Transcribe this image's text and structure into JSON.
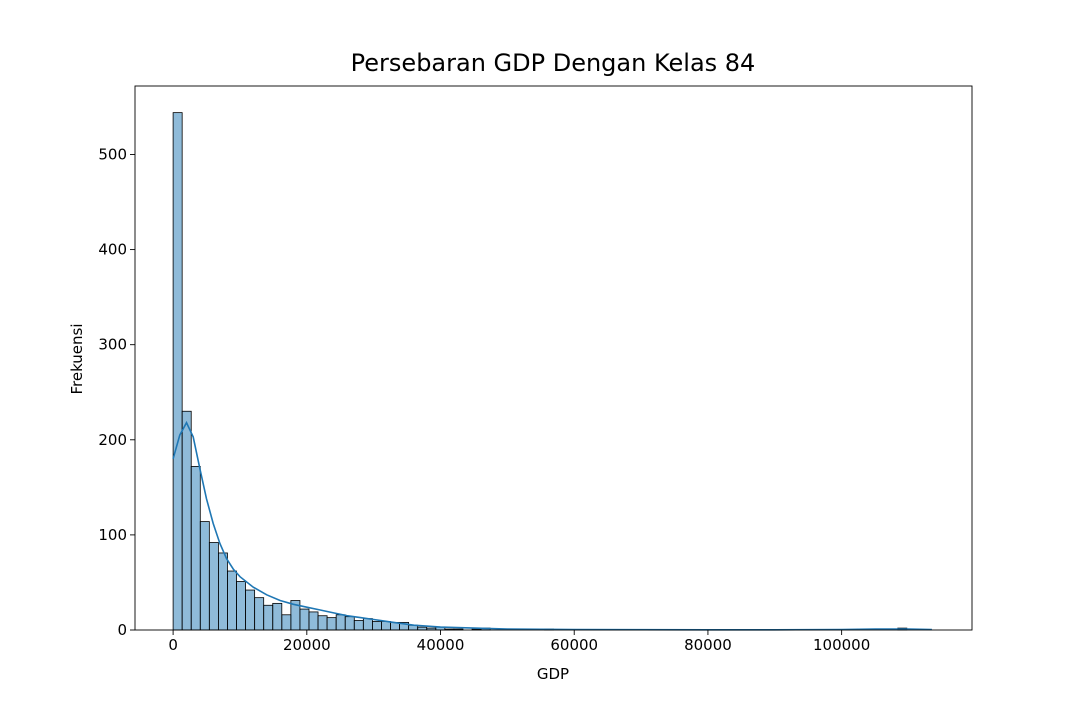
{
  "chart_data": {
    "type": "bar",
    "title": "Persebaran GDP Dengan Kelas 84",
    "xlabel": "GDP",
    "ylabel": "Frekuensi",
    "xlim": [
      -5700,
      119500
    ],
    "ylim": [
      0,
      572
    ],
    "xticks": [
      0,
      20000,
      40000,
      60000,
      80000,
      100000
    ],
    "xtick_labels": [
      "0",
      "20000",
      "40000",
      "60000",
      "80000",
      "100000"
    ],
    "yticks": [
      0,
      100,
      200,
      300,
      400,
      500
    ],
    "ytick_labels": [
      "0",
      "100",
      "200",
      "300",
      "400",
      "500"
    ],
    "bins": {
      "start": 0,
      "width": 1355,
      "count": 84
    },
    "values": [
      544,
      230,
      172,
      114,
      92,
      81,
      62,
      51,
      42,
      34,
      26,
      28,
      16,
      31,
      22,
      19,
      15,
      13,
      16,
      14,
      10,
      12,
      9,
      9,
      8,
      8,
      5,
      3,
      2,
      3,
      1,
      1,
      0,
      1,
      2,
      0,
      0,
      0,
      0,
      0,
      0,
      1,
      0,
      0,
      0,
      0,
      0,
      0,
      0,
      0,
      0,
      0,
      0,
      0,
      0,
      0,
      0,
      0,
      0,
      0,
      0,
      0,
      0,
      0,
      0,
      0,
      0,
      0,
      0,
      0,
      0,
      0,
      0,
      0,
      0,
      0,
      0,
      0,
      0,
      0,
      2,
      0,
      0,
      0
    ],
    "kde": {
      "x": [
        0,
        1000,
        2000,
        3000,
        4000,
        5000,
        6000,
        7000,
        8000,
        9000,
        10000,
        12000,
        14000,
        16000,
        18000,
        20000,
        22000,
        24000,
        26000,
        28000,
        30000,
        33000,
        36000,
        40000,
        45000,
        50000,
        60000,
        70000,
        80000,
        90000,
        100000,
        105000,
        110000,
        113500
      ],
      "y": [
        180,
        205,
        218,
        203,
        170,
        138,
        112,
        91,
        75,
        64,
        56,
        45,
        37,
        31,
        27,
        24,
        21,
        18,
        15,
        13,
        11,
        8,
        5,
        3,
        2,
        1,
        0.5,
        0.3,
        0.2,
        0.2,
        0.5,
        1,
        1,
        0.5
      ]
    },
    "color": "#1f77b4",
    "grid": false,
    "legend": false
  }
}
